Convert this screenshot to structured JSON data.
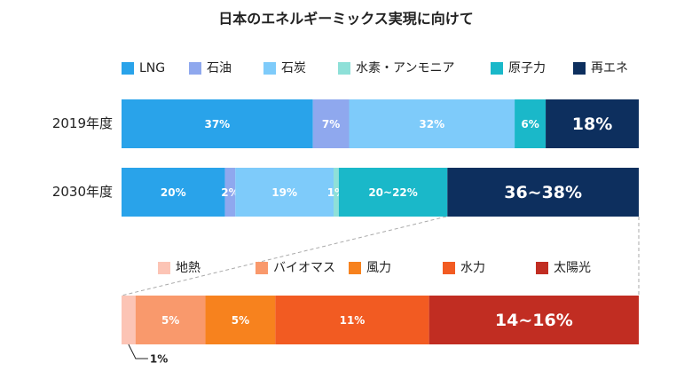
{
  "chart_data": [
    {
      "type": "bar",
      "orientation": "horizontal",
      "stacked": true,
      "title": "日本のエネルギーミックス実現に向けて",
      "categories": [
        "2019年度",
        "2030年度"
      ],
      "xlim": [
        0,
        100
      ],
      "legend": "top",
      "series": [
        {
          "name": "LNG",
          "color": "#29a3ea",
          "values": [
            37,
            20
          ],
          "value_labels": [
            "37%",
            "20%"
          ]
        },
        {
          "name": "石油",
          "color": "#8fa8ee",
          "values": [
            7,
            2
          ],
          "value_labels": [
            "7%",
            "2%"
          ]
        },
        {
          "name": "石炭",
          "color": "#7ecbfa",
          "values": [
            32,
            19
          ],
          "value_labels": [
            "32%",
            "19%"
          ]
        },
        {
          "name": "水素・アンモニア",
          "color": "#8ee0d8",
          "values": [
            0,
            1
          ],
          "value_labels": [
            null,
            "1%"
          ]
        },
        {
          "name": "原子力",
          "color": "#1ab8c9",
          "values": [
            6,
            21
          ],
          "value_labels": [
            "6%",
            "20~22%"
          ]
        },
        {
          "name": "再エネ",
          "color": "#0d2f5e",
          "values": [
            18,
            37
          ],
          "value_labels": [
            "18%",
            "36~38%"
          ]
        }
      ]
    },
    {
      "type": "bar",
      "orientation": "horizontal",
      "stacked": true,
      "categories": [
        null
      ],
      "xlim": [
        0,
        37
      ],
      "legend": "top",
      "series": [
        {
          "name": "地熱",
          "color": "#fcc4b5",
          "values": [
            1
          ],
          "value_labels": [
            "1%"
          ]
        },
        {
          "name": "バイオマス",
          "color": "#f9996c",
          "values": [
            5
          ],
          "value_labels": [
            "5%"
          ]
        },
        {
          "name": "風力",
          "color": "#f7821e",
          "values": [
            5
          ],
          "value_labels": [
            "5%"
          ]
        },
        {
          "name": "水力",
          "color": "#f25b22",
          "values": [
            11
          ],
          "value_labels": [
            "11%"
          ]
        },
        {
          "name": "太陽光",
          "color": "#c12d22",
          "values": [
            15
          ],
          "value_labels": [
            "14~16%"
          ]
        }
      ]
    }
  ]
}
